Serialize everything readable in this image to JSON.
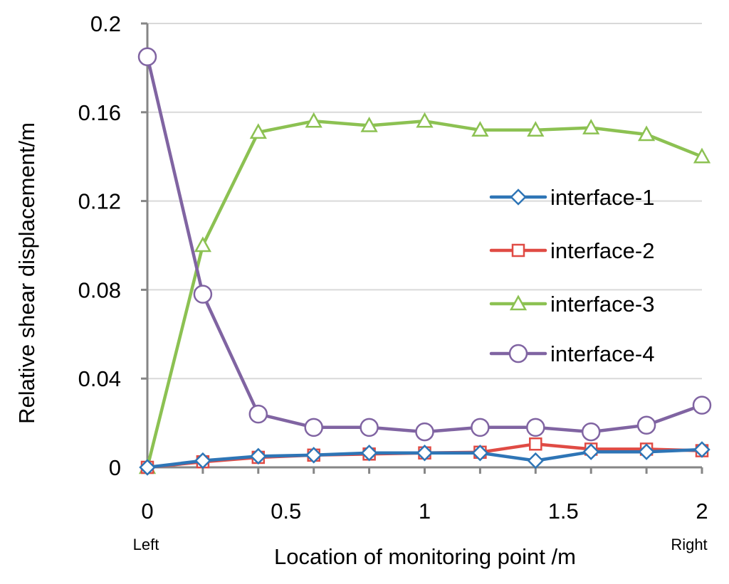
{
  "chart_data": {
    "type": "line",
    "title": "",
    "xlabel": "Location of monitoring point /m",
    "ylabel": "Relative shear displacement/m",
    "xlim": [
      0,
      2
    ],
    "ylim": [
      0,
      0.2
    ],
    "x_ticks": [
      0,
      0.5,
      1,
      1.5,
      2
    ],
    "x_tick_labels": [
      "0",
      "0.5",
      "1",
      "1.5",
      "2"
    ],
    "y_ticks": [
      0,
      0.04,
      0.08,
      0.12,
      0.16,
      0.2
    ],
    "y_tick_labels": [
      "0",
      "0.04",
      "0.08",
      "0.12",
      "0.16",
      "0.2"
    ],
    "x_end_labels": {
      "left": "Left",
      "right": "Right"
    },
    "grid": "horizontal",
    "legend_position": "right",
    "x": [
      0,
      0.2,
      0.4,
      0.6,
      0.8,
      1.0,
      1.2,
      1.4,
      1.6,
      1.8,
      2.0
    ],
    "series": [
      {
        "name": "interface-1",
        "color": "#2e75b6",
        "marker": "diamond",
        "values": [
          0,
          0.003,
          0.005,
          0.0055,
          0.0065,
          0.0065,
          0.0065,
          0.003,
          0.007,
          0.007,
          0.008
        ]
      },
      {
        "name": "interface-2",
        "color": "#e04b44",
        "marker": "square",
        "values": [
          0,
          0.0025,
          0.0045,
          0.0055,
          0.006,
          0.0065,
          0.0068,
          0.0105,
          0.0082,
          0.0082,
          0.0075
        ]
      },
      {
        "name": "interface-3",
        "color": "#8cc152",
        "marker": "triangle",
        "values": [
          0,
          0.1,
          0.151,
          0.156,
          0.154,
          0.156,
          0.152,
          0.152,
          0.153,
          0.15,
          0.14
        ]
      },
      {
        "name": "interface-4",
        "color": "#8064a2",
        "marker": "circle",
        "values": [
          0.185,
          0.078,
          0.024,
          0.018,
          0.018,
          0.016,
          0.018,
          0.018,
          0.016,
          0.019,
          0.028
        ]
      }
    ]
  }
}
